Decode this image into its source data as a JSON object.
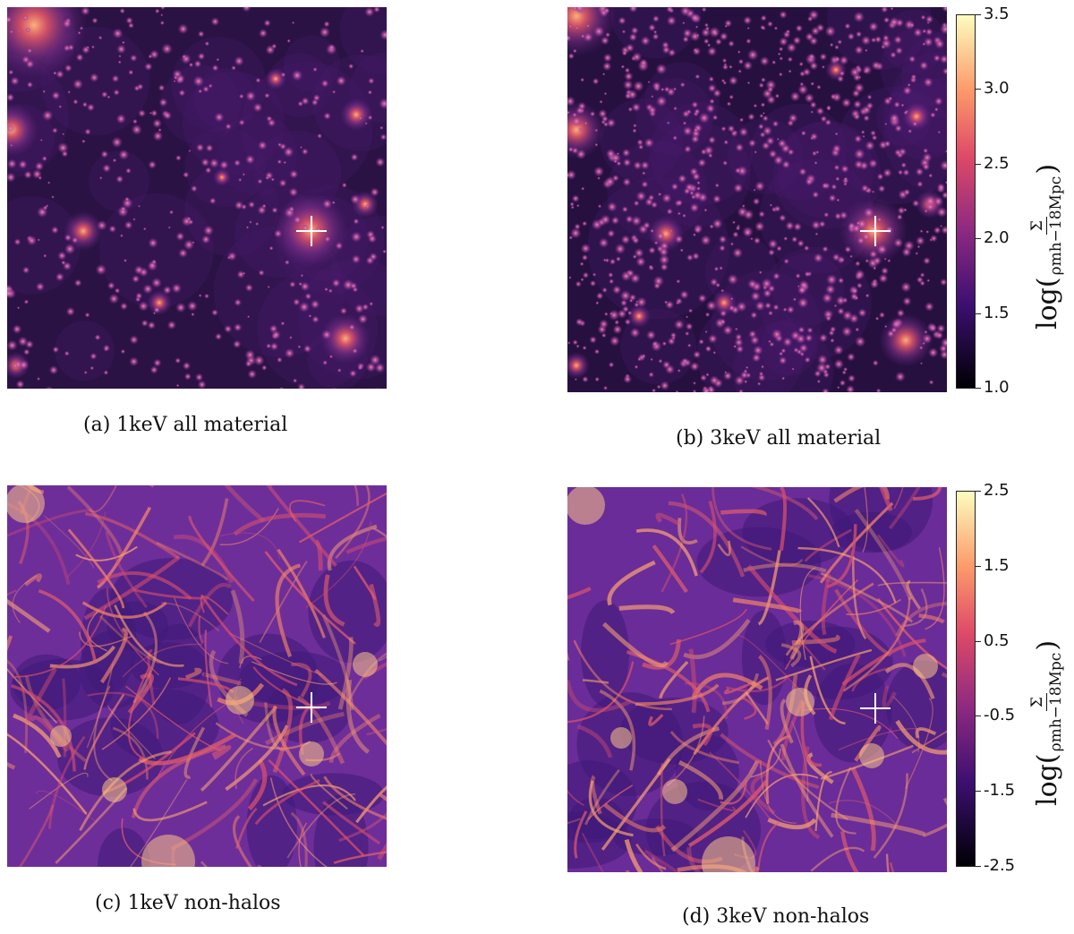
{
  "panels": [
    {
      "id": "a",
      "caption": "(a) 1keV all material",
      "kind": "halos"
    },
    {
      "id": "b",
      "caption": "(b) 3keV all material",
      "kind": "halos"
    },
    {
      "id": "c",
      "caption": "(c) 1keV non-halos",
      "kind": "web"
    },
    {
      "id": "d",
      "caption": "(d) 3keV non-halos",
      "kind": "web"
    }
  ],
  "colorbar_top": {
    "ticks": [
      "3.5",
      "3.0",
      "2.5",
      "2.0",
      "1.5",
      "1.0"
    ],
    "label_prefix": "log(",
    "label_numerator": "Σ",
    "label_denominator": "ρmh−18Mpc",
    "label_suffix": ")"
  },
  "colorbar_bottom": {
    "ticks": [
      "2.5",
      "1.5",
      "0.5",
      "-0.5",
      "-1.5",
      "-2.5"
    ],
    "label_prefix": "log(",
    "label_numerator": "Σ",
    "label_denominator": "ρmh−18Mpc",
    "label_suffix": ")"
  },
  "colormap": "magma",
  "colors": {
    "magma_top": "#fcfdbf",
    "magma_orange": "#fd9a6a",
    "magma_red": "#de4968",
    "magma_purple": "#8c2981",
    "magma_dark": "#3b0f70",
    "magma_black": "#000004"
  }
}
